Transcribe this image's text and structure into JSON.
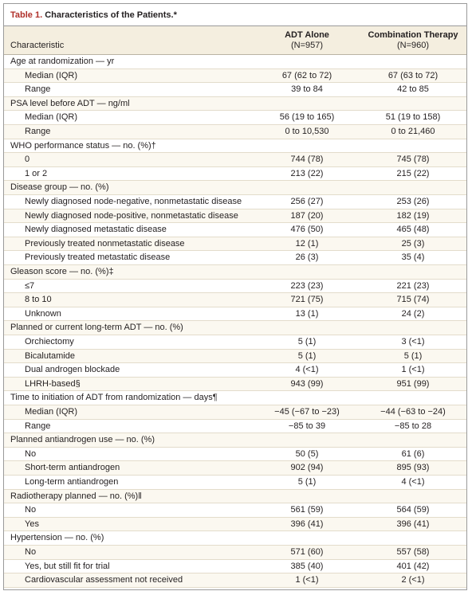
{
  "title": {
    "label": "Table 1.",
    "text": "Characteristics of the Patients.*"
  },
  "header": {
    "columns": [
      "Characteristic",
      "ADT Alone",
      "Combination Therapy"
    ],
    "n": [
      "(N=957)",
      "(N=960)"
    ]
  },
  "table": {
    "rows": [
      [
        "Age at randomization — yr"
      ],
      [
        "Median (IQR)",
        "67 (62 to 72)",
        "67 (63 to 72)"
      ],
      [
        "Range",
        "39 to 84",
        "42 to 85"
      ],
      [
        "PSA level before ADT — ng/ml"
      ],
      [
        "Median (IQR)",
        "56 (19 to 165)",
        "51 (19 to 158)"
      ],
      [
        "Range",
        "0 to 10,530",
        "0 to 21,460"
      ],
      [
        "WHO performance status — no. (%)†"
      ],
      [
        "0",
        "744 (78)",
        "745 (78)"
      ],
      [
        "1 or 2",
        "213 (22)",
        "215 (22)"
      ],
      [
        "Disease group — no. (%)"
      ],
      [
        "Newly diagnosed node-negative, nonmetastatic disease",
        "256 (27)",
        "253 (26)"
      ],
      [
        "Newly diagnosed node-positive, nonmetastatic disease",
        "187 (20)",
        "182 (19)"
      ],
      [
        "Newly diagnosed metastatic disease",
        "476 (50)",
        "465 (48)"
      ],
      [
        "Previously treated nonmetastatic disease",
        "12 (1)",
        "25 (3)"
      ],
      [
        "Previously treated metastatic disease",
        "26 (3)",
        "35 (4)"
      ],
      [
        "Gleason score — no. (%)‡"
      ],
      [
        "≤7",
        "223 (23)",
        "221 (23)"
      ],
      [
        "8 to 10",
        "721 (75)",
        "715 (74)"
      ],
      [
        "Unknown",
        "13 (1)",
        "24 (2)"
      ],
      [
        "Planned or current long-term ADT — no. (%)"
      ],
      [
        "Orchiectomy",
        "5 (1)",
        "3 (<1)"
      ],
      [
        "Bicalutamide",
        "5 (1)",
        "5 (1)"
      ],
      [
        "Dual androgen blockade",
        "4 (<1)",
        "1 (<1)"
      ],
      [
        "LHRH-based§",
        "943 (99)",
        "951 (99)"
      ],
      [
        "Time to initiation of ADT from randomization — days¶"
      ],
      [
        "Median (IQR)",
        "−45 (−67 to −23)",
        "−44 (−63 to −24)"
      ],
      [
        "Range",
        "−85 to 39",
        "−85 to 28"
      ],
      [
        "Planned antiandrogen use — no. (%)"
      ],
      [
        "No",
        "50 (5)",
        "61 (6)"
      ],
      [
        "Short-term antiandrogen",
        "902 (94)",
        "895 (93)"
      ],
      [
        "Long-term antiandrogen",
        "5 (1)",
        "4 (<1)"
      ],
      [
        "Radiotherapy planned — no. (%)‖"
      ],
      [
        "No",
        "561 (59)",
        "564 (59)"
      ],
      [
        "Yes",
        "396 (41)",
        "396 (41)"
      ],
      [
        "Hypertension — no. (%)"
      ],
      [
        "No",
        "571 (60)",
        "557 (58)"
      ],
      [
        "Yes, but still fit for trial",
        "385 (40)",
        "401 (42)"
      ],
      [
        "Cardiovascular assessment not received",
        "1 (<1)",
        "2 (<1)"
      ]
    ]
  }
}
